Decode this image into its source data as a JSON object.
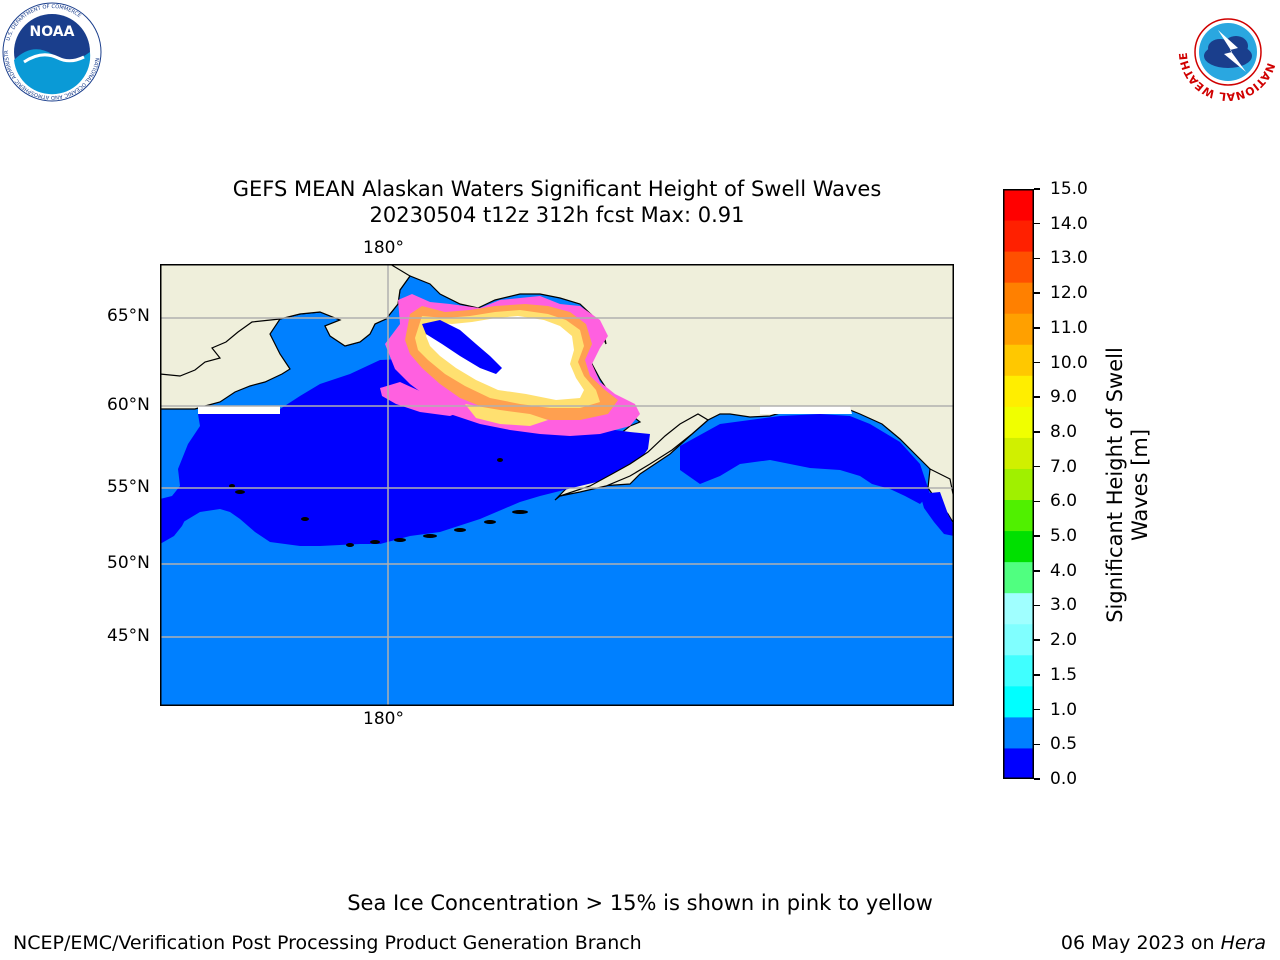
{
  "title_line1": "GEFS MEAN Alaskan Waters Significant Height of Swell Waves",
  "title_line2": "20230504 t12z 312h fcst   Max: 0.91",
  "map": {
    "lon_label_top": "180°",
    "lon_label_bottom": "180°",
    "lat_labels": [
      "65°N",
      "60°N",
      "55°N",
      "50°N",
      "45°N"
    ]
  },
  "colorbar": {
    "label_line1": "Significant Height of Swell",
    "label_line2": "Waves [m]",
    "ticks": [
      "15.0",
      "14.0",
      "13.0",
      "12.0",
      "11.0",
      "10.0",
      "9.0",
      "8.0",
      "7.0",
      "6.0",
      "5.0",
      "4.0",
      "3.0",
      "2.0",
      "1.5",
      "1.0",
      "0.5",
      "0.0"
    ],
    "colors_bottom_to_top": [
      "#0000ff",
      "#0080ff",
      "#00ffff",
      "#40ffff",
      "#80ffff",
      "#a0ffff",
      "#50ff80",
      "#00e000",
      "#50f000",
      "#a0f000",
      "#d0f000",
      "#f0ff00",
      "#ffee00",
      "#ffc800",
      "#ffa000",
      "#ff8000",
      "#ff5000",
      "#ff2000",
      "#ff0000"
    ]
  },
  "colors": {
    "land": "#efefdb",
    "ocean_light": "#0080ff",
    "ocean_deep": "#0000ff",
    "ice_pink": "#ff60e0",
    "ice_orange": "#ffa050",
    "ice_yellow": "#ffe070",
    "grid": "#b0b0b0"
  },
  "logos": {
    "noaa_text": "NOAA",
    "noaa_ring": "NATIONAL OCEANIC AND ATMOSPHERIC ADMINISTRATION",
    "noaa_ring_bottom": "U.S. DEPARTMENT OF COMMERCE",
    "nws_ring": "NATIONAL WEATHER SERVICE"
  },
  "footer": {
    "note": "Sea Ice Concentration > 15% is shown in pink to yellow",
    "left": "NCEP/EMC/Verification Post Processing Product Generation Branch",
    "date": "06 May 2023 on ",
    "machine": "Hera"
  }
}
